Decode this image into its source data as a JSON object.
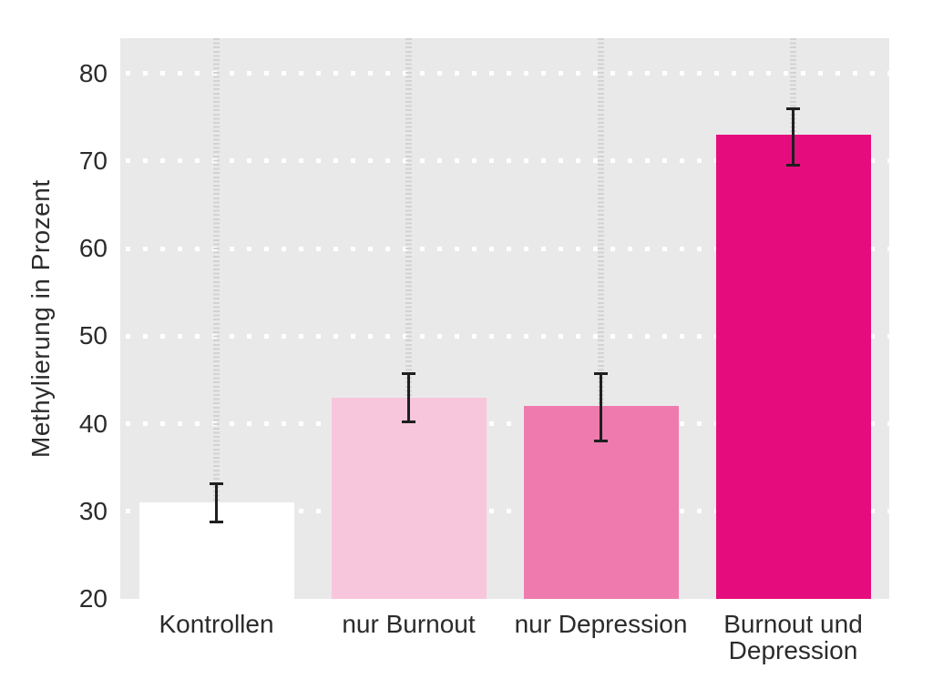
{
  "chart_data": {
    "type": "bar",
    "title": "",
    "xlabel": "",
    "ylabel": "Methylierung in Prozent",
    "categories": [
      "Kontrollen",
      "nur Burnout",
      "nur Depression",
      "Burnout und Depression"
    ],
    "values": [
      31,
      43,
      42,
      73
    ],
    "errors": [
      {
        "low": 28.8,
        "high": 33.1
      },
      {
        "low": 40.2,
        "high": 45.7
      },
      {
        "low": 38.0,
        "high": 45.7
      },
      {
        "low": 69.5,
        "high": 76.0
      }
    ],
    "yticks": [
      20,
      30,
      40,
      50,
      60,
      70,
      80
    ],
    "ylim": [
      20,
      84
    ],
    "bar_colors": [
      "#ffffff",
      "#f8c6dc",
      "#ef7bae",
      "#e50c7e"
    ],
    "error_bar_color": "#1f1f1f",
    "panel_background": "#e9e9e9",
    "page_background": "#ffffff",
    "gridline_color": "#ffffff",
    "guide_line_color": "#d2d2d2",
    "legend": "none",
    "grid_style": {
      "horizontal": "white dotted lines at every 10 units",
      "vertical": "gray dashed guide line at each bar center, behind bars"
    }
  }
}
